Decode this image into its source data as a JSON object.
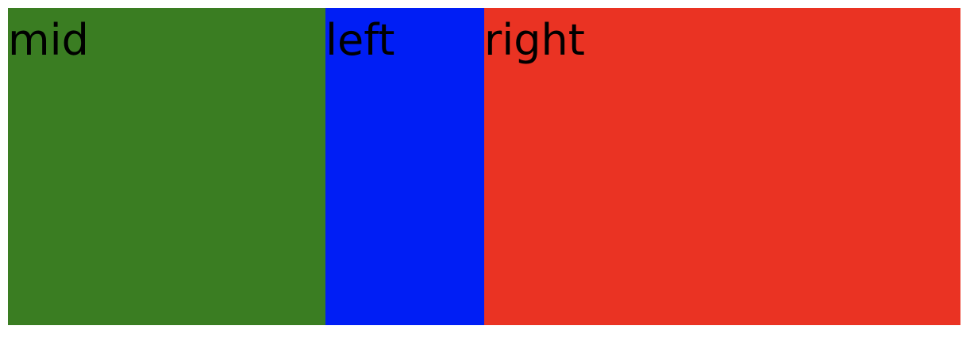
{
  "panels": [
    {
      "label": "mid",
      "color": "#3a7d22"
    },
    {
      "label": "left",
      "color": "#001ef5"
    },
    {
      "label": "right",
      "color": "#ea3323"
    }
  ]
}
